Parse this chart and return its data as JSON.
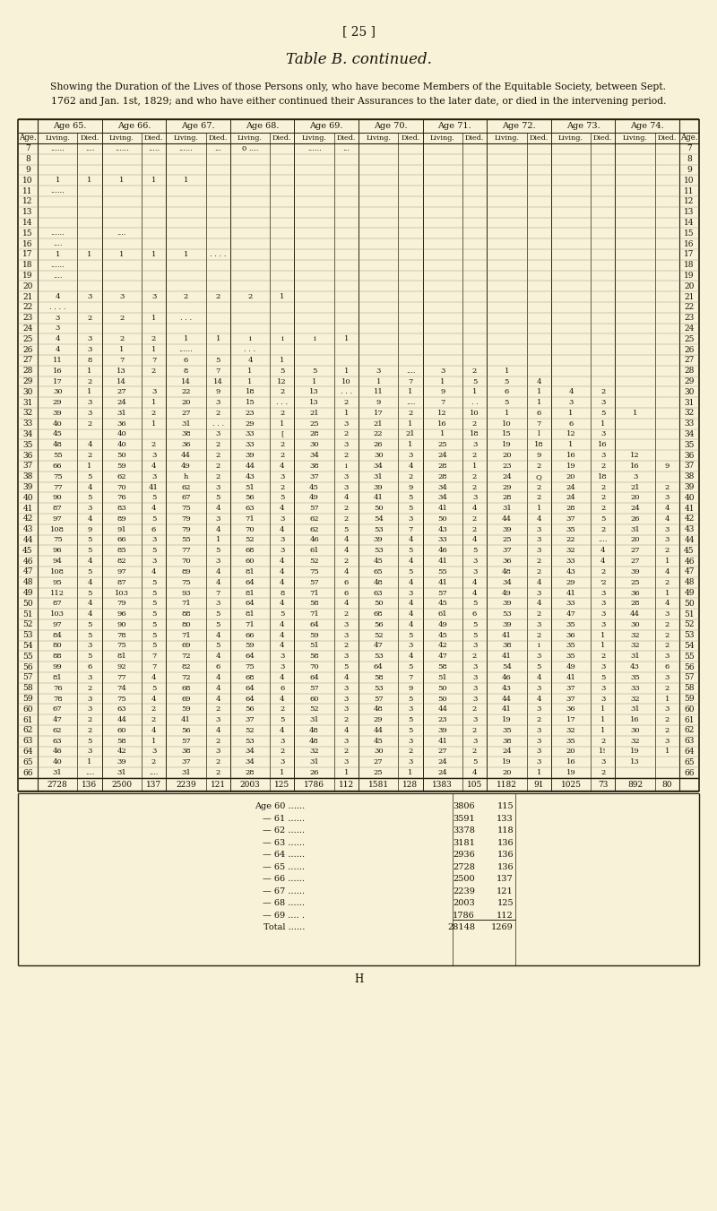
{
  "page_number": "[ 25 ]",
  "title": "Table B. continued.",
  "subtitle_line1": "Showing the Duration of the Lives of those Persons only, who have become Members of the Equitable Society, between Sept.",
  "subtitle_line2": "1762 and Jan. 1st, 1829; and who have either continued their Assurances to the later date, or died in the intervening period.",
  "age_groups": [
    "Age 65.",
    "Age 66.",
    "Age 67.",
    "Age 68.",
    "Age 69.",
    "Age 70.",
    "Age 71.",
    "Age 72.",
    "Age 73.",
    "Age 74."
  ],
  "rows": [
    [
      "7",
      "......",
      "....",
      "......",
      ".....",
      "......",
      "...",
      "0 ....",
      "",
      "......",
      "...",
      "",
      "",
      "",
      "",
      "",
      "",
      "",
      "",
      "",
      "",
      "7"
    ],
    [
      "8",
      "",
      "",
      "",
      "",
      "",
      "",
      "",
      "",
      "",
      "",
      "",
      "",
      "",
      "",
      "",
      "",
      "",
      "",
      "",
      "",
      "8"
    ],
    [
      "9",
      "",
      "",
      "",
      "",
      "",
      "",
      "",
      "",
      "",
      "",
      "",
      "",
      "",
      "",
      "",
      "",
      "",
      "",
      "",
      "",
      "9"
    ],
    [
      "10",
      "1",
      "1",
      "1",
      "1",
      "1",
      "",
      "",
      "",
      "",
      "",
      "",
      "",
      "",
      "",
      "",
      "",
      "",
      "",
      "",
      "",
      "10"
    ],
    [
      "11",
      "......",
      "",
      "",
      "",
      "",
      "",
      "",
      "",
      "",
      "",
      "",
      "",
      "",
      "",
      "",
      "",
      "",
      "",
      "",
      "",
      "11"
    ],
    [
      "12",
      "",
      "",
      "",
      "",
      "",
      "",
      "",
      "",
      "",
      "",
      "",
      "",
      "",
      "",
      "",
      "",
      "",
      "",
      "",
      "",
      "12"
    ],
    [
      "13",
      "",
      "",
      "",
      "",
      "",
      "",
      "",
      "",
      "",
      "",
      "",
      "",
      "",
      "",
      "",
      "",
      "",
      "",
      "",
      "",
      "13"
    ],
    [
      "14",
      "",
      "",
      "",
      "",
      "",
      "",
      "",
      "",
      "",
      "",
      "",
      "",
      "",
      "",
      "",
      "",
      "",
      "",
      "",
      "",
      "14"
    ],
    [
      "15",
      "......",
      "",
      "....",
      "",
      "",
      "",
      "",
      "",
      "",
      "",
      "",
      "",
      "",
      "",
      "",
      "",
      "",
      "",
      "",
      "",
      "15"
    ],
    [
      "16",
      "....",
      "",
      "",
      "",
      "",
      "",
      "",
      "",
      "",
      "",
      "",
      "",
      "",
      "",
      "",
      "",
      "",
      "",
      "",
      "",
      "16"
    ],
    [
      "17",
      "1",
      "1",
      "1",
      "1",
      "1",
      ". . . .",
      "",
      "",
      "",
      "",
      "",
      "",
      "",
      "",
      "",
      "",
      "",
      "",
      "",
      "",
      "17"
    ],
    [
      "18",
      "......",
      "",
      "",
      "",
      "",
      "",
      "",
      "",
      "",
      "",
      "",
      "",
      "",
      "",
      "",
      "",
      "",
      "",
      "",
      "",
      "18"
    ],
    [
      "19",
      "....",
      "",
      "",
      "",
      "",
      "",
      "",
      "",
      "",
      "",
      "",
      "",
      "",
      "",
      "",
      "",
      "",
      "",
      "",
      "",
      "19"
    ],
    [
      "20",
      "",
      "",
      "",
      "",
      "",
      "",
      "",
      "",
      "",
      "",
      "",
      "",
      "",
      "",
      "",
      "",
      "",
      "",
      "",
      "",
      "20"
    ],
    [
      "21",
      "4",
      "3",
      "3",
      "3",
      "2",
      "2",
      "2",
      "1",
      "",
      "",
      "",
      "",
      "",
      "",
      "",
      "",
      "",
      "",
      "",
      "",
      "21"
    ],
    [
      "22",
      ". . . .",
      "",
      "",
      "",
      "",
      "",
      "",
      "",
      "",
      "",
      "",
      "",
      "",
      "",
      "",
      "",
      "",
      "",
      "",
      "",
      "22"
    ],
    [
      "23",
      "3",
      "2",
      "2",
      "1",
      ". . .",
      "",
      "",
      "",
      "",
      "",
      "",
      "",
      "",
      "",
      "",
      "",
      "",
      "",
      "",
      "",
      "23"
    ],
    [
      "24",
      "3",
      "",
      "",
      "",
      "",
      "",
      "",
      "",
      "",
      "",
      "",
      "",
      "",
      "",
      "",
      "",
      "",
      "",
      "",
      "",
      "24"
    ],
    [
      "25",
      "4",
      "3",
      "2",
      "2",
      "1",
      "1",
      "i",
      "i",
      "i",
      "1",
      "",
      "",
      "",
      "",
      "",
      "",
      "",
      "",
      "",
      "",
      "25"
    ],
    [
      "26",
      "4",
      "3",
      "1",
      "1",
      "......",
      "",
      ". . .",
      "",
      "",
      "",
      "",
      "",
      "",
      "",
      "",
      "",
      "",
      "",
      "",
      "",
      "26"
    ],
    [
      "27",
      "11",
      "8",
      "7",
      "7",
      "6",
      "5",
      "4",
      "1",
      "",
      "",
      "",
      "",
      "",
      "",
      "",
      "",
      "",
      "",
      "",
      "",
      "27"
    ],
    [
      "28",
      "16",
      "1",
      "13",
      "2",
      "8",
      "7",
      "1",
      "5",
      "5",
      "1",
      "3",
      "....",
      "3",
      "2",
      "1",
      "",
      "",
      "",
      "",
      "",
      "28"
    ],
    [
      "29",
      "17",
      "2",
      "14",
      "",
      "14",
      "14",
      "1",
      "12",
      "1",
      "10",
      "1",
      "7",
      "1",
      "5",
      "5",
      "4",
      "",
      "",
      "",
      "",
      "29"
    ],
    [
      "30",
      "30",
      "1",
      "27",
      "3",
      "22",
      "9",
      "18",
      "2",
      "13",
      ". . .",
      "11",
      "1",
      "9",
      "1",
      "6",
      "1",
      "4",
      "2",
      "",
      "",
      "30"
    ],
    [
      "31",
      "29",
      "3",
      "24",
      "1",
      "20",
      "3",
      "15",
      ". . .",
      "13",
      "2",
      "9",
      "....",
      "7",
      ". .",
      "5",
      "1",
      "3",
      "3",
      "",
      "",
      "31"
    ],
    [
      "32",
      "39",
      "3",
      "31",
      "2",
      "27",
      "2",
      "23",
      "2",
      "21",
      "1",
      "17",
      "2",
      "12",
      "10",
      "1",
      "6",
      "1",
      "5",
      "1",
      "",
      "32"
    ],
    [
      "33",
      "40",
      "2",
      "36",
      "1",
      "31",
      ". . .",
      "29",
      "1",
      "25",
      "3",
      "21",
      "1",
      "16",
      "2",
      "10",
      "7",
      "6",
      "1",
      "",
      "",
      "33"
    ],
    [
      "34",
      "45",
      "",
      "40",
      "",
      "38",
      "3",
      "33",
      "[",
      "28",
      "2",
      "22",
      "21",
      "1",
      "18",
      "15",
      "l",
      "12",
      "3",
      "",
      "",
      "34"
    ],
    [
      "35",
      "48",
      "4",
      "40",
      "2",
      "36",
      "2",
      "33",
      "2",
      "30",
      "3",
      "26",
      "1",
      "25",
      "3",
      "19",
      "18",
      "1",
      "16",
      "",
      "",
      "35"
    ],
    [
      "36",
      "55",
      "2",
      "50",
      "3",
      "44",
      "2",
      "39",
      "2",
      "34",
      "2",
      "30",
      "3",
      "24",
      "2",
      "20",
      "9",
      "16",
      "3",
      "12",
      "",
      "36"
    ],
    [
      "37",
      "66",
      "1",
      "59",
      "4",
      "49",
      "2",
      "44",
      "4",
      "38",
      "i",
      "34",
      "4",
      "28",
      "1",
      "23",
      "2",
      "19",
      "2",
      "16",
      "9",
      "37"
    ],
    [
      "38",
      "75",
      "5",
      "62",
      "3",
      "h",
      "2",
      "43",
      "3",
      "37",
      "3",
      "31",
      "2",
      "28",
      "2",
      "24",
      "Q",
      "20",
      "18",
      "3",
      "",
      "38"
    ],
    [
      "39",
      "77",
      "4",
      "70",
      "41",
      "62",
      "3",
      "51",
      "2",
      "45",
      "3",
      "39",
      "9",
      "34",
      "2",
      "29",
      "2",
      "24",
      "2",
      "21",
      "2",
      "39"
    ],
    [
      "40",
      "90",
      "5",
      "76",
      "5",
      "67",
      "5",
      "56",
      "5",
      "49",
      "4",
      "41",
      "5",
      "34",
      "3",
      "28",
      "2",
      "24",
      "2",
      "20",
      "3",
      "40"
    ],
    [
      "41",
      "87",
      "3",
      "83",
      "4",
      "75",
      "4",
      "63",
      "4",
      "57",
      "2",
      "50",
      "5",
      "41",
      "4",
      "31",
      "1",
      "28",
      "2",
      "24",
      "4",
      "41"
    ],
    [
      "42",
      "97",
      "4",
      "89",
      "5",
      "79",
      "3",
      "71",
      "3",
      "62",
      "2",
      "54",
      "3",
      "50",
      "2",
      "44",
      "4",
      "37",
      "5",
      "26",
      "4",
      "42"
    ],
    [
      "43",
      "108",
      "9",
      "91",
      "6",
      "79",
      "4",
      "70",
      "4",
      "62",
      "5",
      "53",
      "7",
      "43",
      "2",
      "39",
      "3",
      "35",
      "2",
      "31",
      "3",
      "43"
    ],
    [
      "44",
      "75",
      "5",
      "66",
      "3",
      "55",
      "1",
      "52",
      "3",
      "46",
      "4",
      "39",
      "4",
      "33",
      "4",
      "25",
      "3",
      "22",
      "....",
      "20",
      "3",
      "44"
    ],
    [
      "45",
      "96",
      "5",
      "85",
      "5",
      "77",
      "5",
      "68",
      "3",
      "61",
      "4",
      "53",
      "5",
      "46",
      "5",
      "37",
      "3",
      "32",
      "4",
      "27",
      "2",
      "45"
    ],
    [
      "46",
      "94",
      "4",
      "82",
      "3",
      "70",
      "3",
      "60",
      "4",
      "52",
      "2",
      "45",
      "4",
      "41",
      "3",
      "36",
      "2",
      "33",
      "4",
      "27",
      "1",
      "46"
    ],
    [
      "47",
      "108",
      "5",
      "97",
      "4",
      "89",
      "4",
      "81",
      "4",
      "75",
      "4",
      "65",
      "5",
      "55",
      "3",
      "48",
      "2",
      "43",
      "2",
      "39",
      "4",
      "47"
    ],
    [
      "48",
      "95",
      "4",
      "87",
      "5",
      "75",
      "4",
      "64",
      "4",
      "57",
      "6",
      "48",
      "4",
      "41",
      "4",
      "34",
      "4",
      "29",
      "'2",
      "25",
      "2",
      "48"
    ],
    [
      "49",
      "112",
      "5",
      "103",
      "5",
      "93",
      "7",
      "81",
      "8",
      "71",
      "6",
      "63",
      "3",
      "57",
      "4",
      "49",
      "3",
      "41",
      "3",
      "36",
      "1",
      "49"
    ],
    [
      "50",
      "87",
      "4",
      "79",
      "5",
      "71",
      "3",
      "64",
      "4",
      "58",
      "4",
      "50",
      "4",
      "45",
      "5",
      "39",
      "4",
      "33",
      "3",
      "28",
      "4",
      "50"
    ],
    [
      "51",
      "103",
      "4",
      "96",
      "5",
      "88",
      "5",
      "81",
      "5",
      "71",
      "2",
      "68",
      "4",
      "61",
      "6",
      "53",
      "2",
      "47",
      "3",
      "44",
      "3",
      "51"
    ],
    [
      "52",
      "97",
      "5",
      "90",
      "5",
      "80",
      "5",
      "71",
      "4",
      "64",
      "3",
      "56",
      "4",
      "49",
      "5",
      "39",
      "3",
      "35",
      "3",
      "30",
      "2",
      "52"
    ],
    [
      "53",
      "84",
      "5",
      "78",
      "5",
      "71",
      "4",
      "66",
      "4",
      "59",
      "3",
      "52",
      "5",
      "45",
      "5",
      "41",
      "2",
      "36",
      "1",
      "32",
      "2",
      "53"
    ],
    [
      "54",
      "80",
      "3",
      "75",
      "5",
      "69",
      "5",
      "59",
      "4",
      "51",
      "2",
      "47",
      "3",
      "42",
      "3",
      "38",
      "i",
      "35",
      "1",
      "32",
      "2",
      "54"
    ],
    [
      "55",
      "88",
      "5",
      "81",
      "7",
      "72",
      "4",
      "64",
      "3",
      "58",
      "3",
      "53",
      "4",
      "47",
      "2",
      "41",
      "3",
      "35",
      "2",
      "31",
      "3",
      "55"
    ],
    [
      "56",
      "99",
      "6",
      "92",
      "7",
      "82",
      "6",
      "75",
      "3",
      "70",
      "5",
      "64",
      "5",
      "58",
      "3",
      "54",
      "5",
      "49",
      "3",
      "43",
      "6",
      "56"
    ],
    [
      "57",
      "81",
      "3",
      "77",
      "4",
      "72",
      "4",
      "68",
      "4",
      "64",
      "4",
      "58",
      "7",
      "51",
      "3",
      "46",
      "4",
      "41",
      "5",
      "35",
      "3",
      "57"
    ],
    [
      "58",
      "76",
      "2",
      "74",
      "5",
      "68",
      "4",
      "64",
      "6",
      "57",
      "3",
      "53",
      "9",
      "50",
      "3",
      "43",
      "3",
      "37",
      "3",
      "33",
      "2",
      "58"
    ],
    [
      "59",
      "78",
      "3",
      "75",
      "4",
      "69",
      "4",
      "64",
      "4",
      "60",
      "3",
      "57",
      "5",
      "50",
      "3",
      "44",
      "4",
      "37",
      "3",
      "32",
      "1",
      "59"
    ],
    [
      "60",
      "67",
      "3",
      "63",
      "2",
      "59",
      "2",
      "56",
      "2",
      "52",
      "3",
      "48",
      "3",
      "44",
      "2",
      "41",
      "3",
      "36",
      "1",
      "31",
      "3",
      "60"
    ],
    [
      "61",
      "47",
      "2",
      "44",
      "2",
      "41",
      "3",
      "37",
      "5",
      "31",
      "2",
      "29",
      "5",
      "23",
      "3",
      "19",
      "2",
      "17",
      "1",
      "16",
      "2",
      "61"
    ],
    [
      "62",
      "62",
      "2",
      "60",
      "4",
      "56",
      "4",
      "52",
      "4",
      "48",
      "4",
      "44",
      "5",
      "39",
      "2",
      "35",
      "3",
      "32",
      "1",
      "30",
      "2",
      "62"
    ],
    [
      "63",
      "63",
      "5",
      "58",
      "1",
      "57",
      "2",
      "53",
      "3",
      "48",
      "3",
      "45",
      "3",
      "41",
      "3",
      "38",
      "3",
      "35",
      "2",
      "32",
      "3",
      "63"
    ],
    [
      "64",
      "46",
      "3",
      "42",
      "3",
      "38",
      "3",
      "34",
      "2",
      "32",
      "2",
      "30",
      "2",
      "27",
      "2",
      "24",
      "3",
      "20",
      "1!",
      "19",
      "1",
      "64"
    ],
    [
      "65",
      "40",
      "1",
      "39",
      "2",
      "37",
      "2",
      "34",
      "3",
      "31",
      "3",
      "27",
      "3",
      "24",
      "5",
      "19",
      "3",
      "16",
      "3",
      "13",
      "",
      "65"
    ],
    [
      "66",
      "31",
      "....",
      "31",
      "....",
      "31",
      "2",
      "28",
      "1",
      "26",
      "1",
      "25",
      "1",
      "24",
      "4",
      "20",
      "1",
      "19",
      "2",
      "",
      "",
      "66"
    ]
  ],
  "totals_row": [
    "2728",
    "136",
    "2500",
    "137",
    "2239",
    "121",
    "2003",
    "125",
    "1786",
    "112",
    "1581",
    "128",
    "1383",
    "105",
    "1182",
    "91",
    "1025",
    "73",
    "892",
    "80"
  ],
  "summary": [
    [
      "Age 60 ......",
      "3806",
      "115"
    ],
    [
      "— 61 ......",
      "3591",
      "133"
    ],
    [
      "— 62 ......",
      "3378",
      "118"
    ],
    [
      "— 63 ......",
      "3181",
      "136"
    ],
    [
      "— 64 ......",
      "2936",
      "136"
    ],
    [
      "— 65 ......",
      "2728",
      "136"
    ],
    [
      "— 66 ......",
      "2500",
      "137"
    ],
    [
      "— 67 ......",
      "2239",
      "121"
    ],
    [
      "— 68 ......",
      "2003",
      "125"
    ],
    [
      "— 69 .... .",
      "1786",
      "112"
    ],
    [
      "Total ......",
      "28148",
      "1269"
    ]
  ],
  "bg_color": "#f7f2d8",
  "text_color": "#1a1208",
  "line_color": "#2a2010"
}
